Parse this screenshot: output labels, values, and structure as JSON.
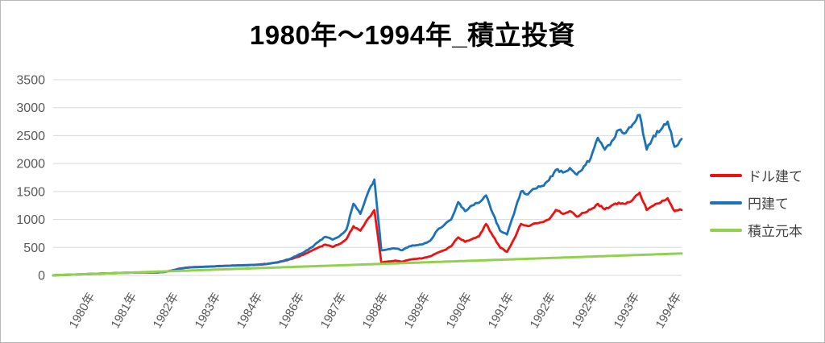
{
  "title": "1980年〜1994年_積立投資",
  "legend": {
    "items": [
      {
        "id": "dollar",
        "label": "ドル建て",
        "color": "#ee1111"
      },
      {
        "id": "yen",
        "label": "円建て",
        "color": "#1c72b8"
      },
      {
        "id": "principal",
        "label": "積立元本",
        "color": "#92d050"
      }
    ]
  },
  "chart_data": {
    "type": "line",
    "title": "1980年〜1994年_積立投資",
    "xlabel": "",
    "ylabel": "",
    "ylim": [
      0,
      3500
    ],
    "y_ticks": [
      0,
      500,
      1000,
      1500,
      2000,
      2500,
      3000,
      3500
    ],
    "x_tick_labels": [
      "1980年",
      "1981年",
      "1982年",
      "1983年",
      "1984年",
      "1986年",
      "1987年",
      "1988年",
      "1989年",
      "1990年",
      "1991年",
      "1992年",
      "1992年",
      "1993年",
      "1994年"
    ],
    "x_range_years": [
      1980,
      1995
    ],
    "points_per_year": 6,
    "grid": "horizontal",
    "legend_position": "right",
    "axis_label_color": "#595959",
    "gridline_color": "#d9d9d9",
    "series": [
      {
        "id": "dollar",
        "name": "ドル建て",
        "color": "#ee1111",
        "noisy": true,
        "values": [
          2,
          6,
          11,
          15,
          19,
          25,
          29,
          34,
          37,
          41,
          46,
          49,
          51,
          53,
          53,
          54,
          63,
          88,
          118,
          138,
          147,
          152,
          156,
          162,
          168,
          172,
          177,
          182,
          185,
          190,
          198,
          212,
          228,
          255,
          290,
          330,
          380,
          440,
          500,
          550,
          510,
          560,
          650,
          880,
          800,
          1000,
          1166,
          230,
          250,
          265,
          245,
          280,
          295,
          310,
          340,
          403,
          450,
          520,
          680,
          600,
          650,
          700,
          920,
          700,
          500,
          420,
          650,
          920,
          880,
          930,
          950,
          1000,
          1170,
          1100,
          1150,
          1050,
          1120,
          1180,
          1280,
          1180,
          1250,
          1300,
          1280,
          1350,
          1480,
          1170,
          1250,
          1300,
          1380,
          1150,
          1170
        ]
      },
      {
        "id": "yen",
        "name": "円建て",
        "color": "#1c72b8",
        "noisy": true,
        "values": [
          2,
          6,
          10,
          14,
          18,
          24,
          28,
          33,
          36,
          40,
          45,
          48,
          50,
          52,
          54,
          55,
          62,
          85,
          115,
          135,
          145,
          150,
          155,
          160,
          165,
          170,
          175,
          180,
          183,
          188,
          195,
          210,
          230,
          260,
          300,
          360,
          420,
          500,
          600,
          690,
          640,
          700,
          820,
          1280,
          1100,
          1450,
          1714,
          446,
          470,
          480,
          450,
          520,
          540,
          560,
          620,
          806,
          900,
          1000,
          1310,
          1150,
          1250,
          1300,
          1430,
          1100,
          800,
          730,
          1100,
          1500,
          1450,
          1550,
          1600,
          1700,
          1890,
          1840,
          1920,
          1800,
          1950,
          2100,
          2460,
          2250,
          2400,
          2600,
          2550,
          2700,
          2870,
          2250,
          2500,
          2600,
          2750,
          2300,
          2440
        ]
      },
      {
        "id": "principal",
        "name": "積立元本",
        "color": "#92d050",
        "noisy": false,
        "values": [
          2,
          6,
          11,
          15,
          19,
          24,
          28,
          32,
          37,
          41,
          45,
          50,
          54,
          58,
          63,
          67,
          71,
          76,
          80,
          84,
          89,
          93,
          97,
          102,
          106,
          110,
          115,
          119,
          123,
          128,
          132,
          136,
          141,
          145,
          149,
          154,
          158,
          162,
          167,
          171,
          175,
          180,
          184,
          188,
          193,
          197,
          201,
          206,
          210,
          214,
          219,
          223,
          227,
          232,
          236,
          240,
          245,
          249,
          253,
          258,
          262,
          266,
          271,
          275,
          279,
          284,
          288,
          292,
          297,
          301,
          305,
          310,
          314,
          318,
          323,
          327,
          331,
          336,
          340,
          344,
          349,
          353,
          357,
          362,
          366,
          370,
          375,
          379,
          383,
          388,
          392
        ]
      }
    ]
  }
}
